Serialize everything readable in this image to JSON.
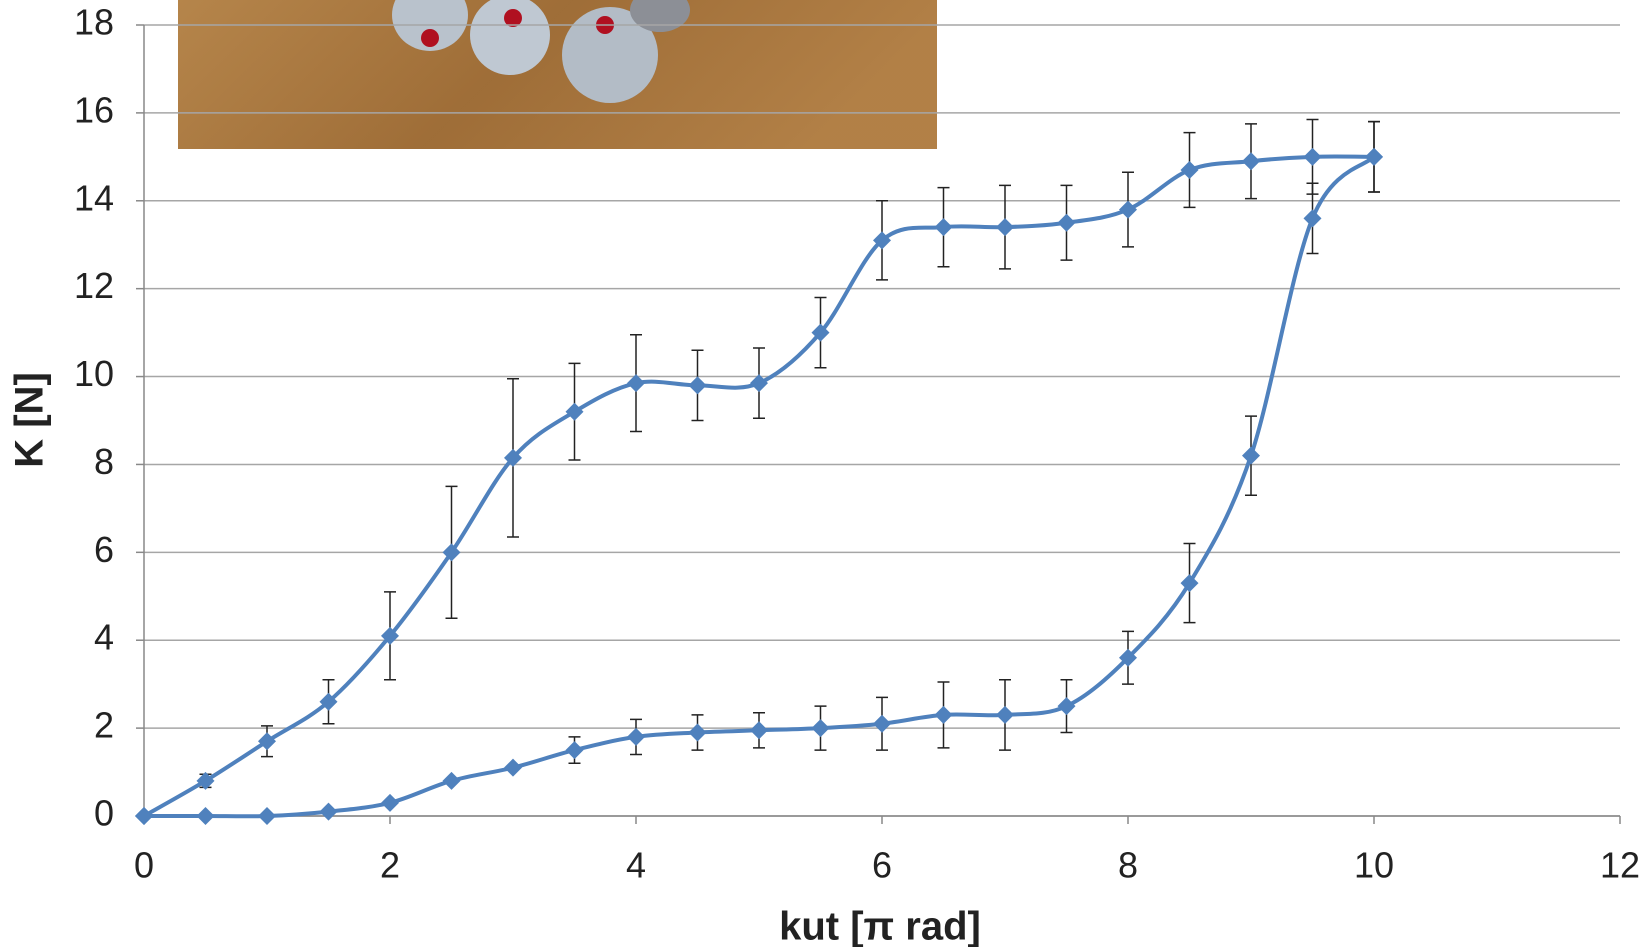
{
  "chart_data": {
    "type": "line",
    "x_label": "kut [π rad]",
    "y_label": "K [N]",
    "x": [
      0,
      0.5,
      1,
      1.5,
      2,
      2.5,
      3,
      3.5,
      4,
      4.5,
      5,
      5.5,
      6,
      6.5,
      7,
      7.5,
      8,
      8.5,
      9,
      9.5,
      10
    ],
    "series": [
      {
        "color": "#4f81bd",
        "values": [
          0,
          0.8,
          1.7,
          2.6,
          4.1,
          6.0,
          8.15,
          9.2,
          9.85,
          9.8,
          9.85,
          11.0,
          13.1,
          13.4,
          13.4,
          13.5,
          13.8,
          14.7,
          14.9,
          15.0,
          15.0
        ],
        "errors": [
          0,
          0.15,
          0.35,
          0.5,
          1.0,
          1.5,
          1.8,
          1.1,
          1.1,
          0.8,
          0.8,
          0.8,
          0.9,
          0.9,
          0.95,
          0.85,
          0.85,
          0.85,
          0.85,
          0.85,
          0.8
        ]
      },
      {
        "color": "#4f81bd",
        "values": [
          0,
          0,
          0,
          0.1,
          0.3,
          0.8,
          1.1,
          1.5,
          1.8,
          1.9,
          1.95,
          2.0,
          2.1,
          2.3,
          2.3,
          2.5,
          3.6,
          5.3,
          8.2,
          13.6,
          15.0
        ],
        "errors": [
          0,
          0,
          0,
          0,
          0,
          0,
          0,
          0.3,
          0.4,
          0.4,
          0.4,
          0.5,
          0.6,
          0.75,
          0.8,
          0.6,
          0.6,
          0.9,
          0.9,
          0.8,
          0.8
        ]
      }
    ],
    "xlim": [
      0,
      12
    ],
    "xticks": [
      0,
      2,
      4,
      6,
      8,
      10,
      12
    ],
    "ylim": [
      0,
      18
    ],
    "yticks": [
      0,
      2,
      4,
      6,
      8,
      10,
      12,
      14,
      16,
      18
    ],
    "grid": true
  }
}
